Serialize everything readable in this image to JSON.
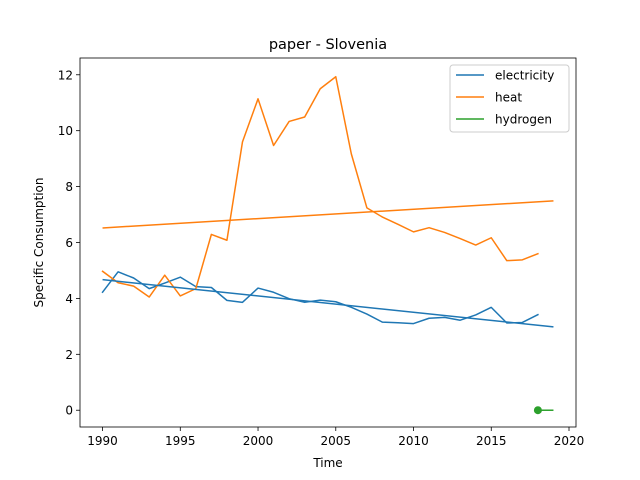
{
  "chart_data": {
    "type": "line",
    "title": "paper - Slovenia",
    "xlabel": "Time",
    "ylabel": "Specific Consumption",
    "xlim": [
      1988.55,
      2020.45
    ],
    "ylim": [
      -0.6,
      12.6
    ],
    "xticks": [
      "1990",
      "1995",
      "2000",
      "2005",
      "2010",
      "2015",
      "2020"
    ],
    "yticks": [
      "0",
      "2",
      "4",
      "6",
      "8",
      "10",
      "12"
    ],
    "legend_position": "top-right",
    "grid": false,
    "series": [
      {
        "name": "electricity",
        "color": "#1f77b4",
        "x": [
          1990,
          1991,
          1992,
          1993,
          1994,
          1995,
          1996,
          1997,
          1998,
          1999,
          2000,
          2001,
          2002,
          2003,
          2004,
          2005,
          2006,
          2007,
          2008,
          2009,
          2010,
          2011,
          2012,
          2013,
          2014,
          2015,
          2016,
          2017,
          2018
        ],
        "values": [
          4.22,
          4.95,
          4.73,
          4.35,
          4.55,
          4.76,
          4.42,
          4.39,
          3.93,
          3.86,
          4.37,
          4.22,
          3.99,
          3.86,
          3.94,
          3.88,
          3.68,
          3.44,
          3.15,
          3.13,
          3.1,
          3.29,
          3.32,
          3.22,
          3.41,
          3.68,
          3.12,
          3.14,
          3.42
        ]
      },
      {
        "name": "heat",
        "color": "#ff7f0e",
        "x": [
          1990,
          1991,
          1992,
          1993,
          1994,
          1995,
          1996,
          1997,
          1998,
          1999,
          2000,
          2001,
          2002,
          2003,
          2004,
          2005,
          2006,
          2007,
          2008,
          2009,
          2010,
          2011,
          2012,
          2013,
          2014,
          2015,
          2016,
          2017,
          2018
        ],
        "values": [
          4.97,
          4.56,
          4.44,
          4.05,
          4.83,
          4.09,
          4.35,
          6.29,
          6.08,
          9.6,
          11.14,
          9.47,
          10.33,
          10.49,
          11.5,
          11.93,
          9.17,
          7.24,
          6.91,
          6.65,
          6.38,
          6.53,
          6.36,
          6.14,
          5.91,
          6.17,
          5.35,
          5.38,
          5.6
        ]
      },
      {
        "name": "hydrogen",
        "color": "#2ca02c",
        "x": [
          2018
        ],
        "values": [
          0.0
        ]
      }
    ],
    "trendlines": [
      {
        "series": "electricity",
        "color": "#1f77b4",
        "x": [
          1990,
          2019
        ],
        "values": [
          4.67,
          2.98
        ]
      },
      {
        "series": "heat",
        "color": "#ff7f0e",
        "x": [
          1990,
          2019
        ],
        "values": [
          6.52,
          7.49
        ]
      },
      {
        "series": "hydrogen",
        "color": "#2ca02c",
        "x": [
          2018,
          2019
        ],
        "values": [
          0.0,
          0.0
        ]
      }
    ]
  }
}
